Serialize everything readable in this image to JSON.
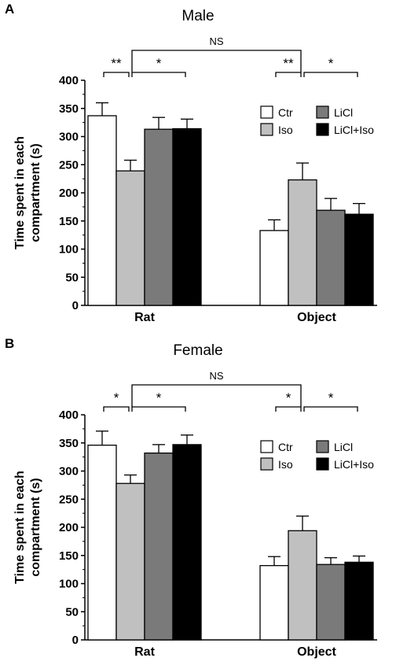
{
  "chart_data": [
    {
      "panel": "A",
      "type": "bar",
      "title": "Male",
      "ylabel": "Time spent in each compartment (s)",
      "ylabel_lines": [
        "Time spent in each",
        "compartment (s)"
      ],
      "ylim": [
        0,
        400
      ],
      "yticks": [
        0,
        50,
        100,
        150,
        200,
        250,
        300,
        350,
        400
      ],
      "categories": [
        "Rat",
        "Object"
      ],
      "series": [
        {
          "name": "Ctr",
          "color": "#ffffff",
          "values": [
            337,
            133
          ],
          "errors": [
            23,
            19
          ]
        },
        {
          "name": "Iso",
          "color": "#c0c0c0",
          "values": [
            239,
            223
          ],
          "errors": [
            19,
            30
          ]
        },
        {
          "name": "LiCl",
          "color": "#7a7a7a",
          "values": [
            313,
            169
          ],
          "errors": [
            21,
            21
          ]
        },
        {
          "name": "LiCl+Iso",
          "color": "#000000",
          "values": [
            314,
            162
          ],
          "errors": [
            17,
            19
          ]
        }
      ],
      "legend_position": "right",
      "annotations": [
        {
          "label": "**",
          "from": [
            0,
            0
          ],
          "to": [
            0,
            1
          ]
        },
        {
          "label": "*",
          "from": [
            0,
            1
          ],
          "to": [
            0,
            3
          ]
        },
        {
          "label": "**",
          "from": [
            1,
            0
          ],
          "to": [
            1,
            1
          ]
        },
        {
          "label": "*",
          "from": [
            1,
            1
          ],
          "to": [
            1,
            3
          ]
        },
        {
          "label": "NS",
          "from": [
            0,
            1
          ],
          "to": [
            1,
            1
          ],
          "type": "long"
        }
      ]
    },
    {
      "panel": "B",
      "type": "bar",
      "title": "Female",
      "ylabel": "Time spent in each compartment (s)",
      "ylabel_lines": [
        "Time spent in each",
        "compartment (s)"
      ],
      "ylim": [
        0,
        400
      ],
      "yticks": [
        0,
        50,
        100,
        150,
        200,
        250,
        300,
        350,
        400
      ],
      "categories": [
        "Rat",
        "Object"
      ],
      "series": [
        {
          "name": "Ctr",
          "color": "#ffffff",
          "values": [
            346,
            132
          ],
          "errors": [
            25,
            16
          ]
        },
        {
          "name": "Iso",
          "color": "#c0c0c0",
          "values": [
            278,
            194
          ],
          "errors": [
            15,
            26
          ]
        },
        {
          "name": "LiCl",
          "color": "#7a7a7a",
          "values": [
            332,
            134
          ],
          "errors": [
            15,
            12
          ]
        },
        {
          "name": "LiCl+Iso",
          "color": "#000000",
          "values": [
            347,
            138
          ],
          "errors": [
            17,
            11
          ]
        }
      ],
      "legend_position": "right",
      "annotations": [
        {
          "label": "*",
          "from": [
            0,
            0
          ],
          "to": [
            0,
            1
          ]
        },
        {
          "label": "*",
          "from": [
            0,
            1
          ],
          "to": [
            0,
            3
          ]
        },
        {
          "label": "*",
          "from": [
            1,
            0
          ],
          "to": [
            1,
            1
          ]
        },
        {
          "label": "*",
          "from": [
            1,
            1
          ],
          "to": [
            1,
            3
          ]
        },
        {
          "label": "NS",
          "from": [
            0,
            1
          ],
          "to": [
            1,
            1
          ],
          "type": "long"
        }
      ]
    }
  ]
}
